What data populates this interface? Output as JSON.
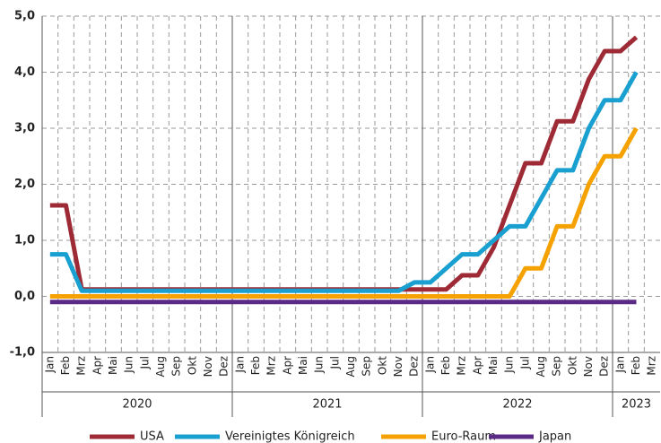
{
  "chart_data": {
    "type": "line",
    "categories": [
      "Jan",
      "Feb",
      "Mrz",
      "Apr",
      "Mai",
      "Jun",
      "Jul",
      "Aug",
      "Sep",
      "Okt",
      "Nov",
      "Dez",
      "Jan",
      "Feb",
      "Mrz",
      "Apr",
      "Mai",
      "Jun",
      "Jul",
      "Aug",
      "Sep",
      "Okt",
      "Nov",
      "Dez",
      "Jan",
      "Feb",
      "Mrz",
      "Apr",
      "Mai",
      "Jun",
      "Jul",
      "Aug",
      "Sep",
      "Okt",
      "Nov",
      "Dez",
      "Jan",
      "Feb",
      "Mrz"
    ],
    "groups": [
      "2020",
      "2021",
      "2022",
      "2023"
    ],
    "series": [
      {
        "name": "USA",
        "color": "#9e2a35",
        "values": [
          1.625,
          1.625,
          0.125,
          0.125,
          0.125,
          0.125,
          0.125,
          0.125,
          0.125,
          0.125,
          0.125,
          0.125,
          0.125,
          0.125,
          0.125,
          0.125,
          0.125,
          0.125,
          0.125,
          0.125,
          0.125,
          0.125,
          0.125,
          0.125,
          0.125,
          0.125,
          0.375,
          0.375,
          0.875,
          1.625,
          2.375,
          2.375,
          3.125,
          3.125,
          3.875,
          4.375,
          4.375,
          4.625,
          null
        ]
      },
      {
        "name": "Vereinigtes Königreich",
        "color": "#1aa0d0",
        "values": [
          0.75,
          0.75,
          0.1,
          0.1,
          0.1,
          0.1,
          0.1,
          0.1,
          0.1,
          0.1,
          0.1,
          0.1,
          0.1,
          0.1,
          0.1,
          0.1,
          0.1,
          0.1,
          0.1,
          0.1,
          0.1,
          0.1,
          0.1,
          0.25,
          0.25,
          0.5,
          0.75,
          0.75,
          1.0,
          1.25,
          1.25,
          1.75,
          2.25,
          2.25,
          3.0,
          3.5,
          3.5,
          4.0,
          null
        ]
      },
      {
        "name": "Euro-Raum",
        "color": "#f5a200",
        "values": [
          0,
          0,
          0,
          0,
          0,
          0,
          0,
          0,
          0,
          0,
          0,
          0,
          0,
          0,
          0,
          0,
          0,
          0,
          0,
          0,
          0,
          0,
          0,
          0,
          0,
          0,
          0,
          0,
          0,
          0,
          0.5,
          0.5,
          1.25,
          1.25,
          2.0,
          2.5,
          2.5,
          3.0,
          null
        ]
      },
      {
        "name": "Japan",
        "color": "#5b2a86",
        "values": [
          -0.1,
          -0.1,
          -0.1,
          -0.1,
          -0.1,
          -0.1,
          -0.1,
          -0.1,
          -0.1,
          -0.1,
          -0.1,
          -0.1,
          -0.1,
          -0.1,
          -0.1,
          -0.1,
          -0.1,
          -0.1,
          -0.1,
          -0.1,
          -0.1,
          -0.1,
          -0.1,
          -0.1,
          -0.1,
          -0.1,
          -0.1,
          -0.1,
          -0.1,
          -0.1,
          -0.1,
          -0.1,
          -0.1,
          -0.1,
          -0.1,
          -0.1,
          -0.1,
          -0.1,
          null
        ]
      }
    ],
    "ylim": [
      -1,
      5
    ],
    "yticks": [
      {
        "value": -1,
        "label": "-1,0"
      },
      {
        "value": 0,
        "label": "0,0"
      },
      {
        "value": 1,
        "label": "1,0"
      },
      {
        "value": 2,
        "label": "2,0"
      },
      {
        "value": 3,
        "label": "3,0"
      },
      {
        "value": 4,
        "label": "4,0"
      },
      {
        "value": 5,
        "label": "5,0"
      }
    ],
    "grid": true,
    "legend": "bottom"
  }
}
